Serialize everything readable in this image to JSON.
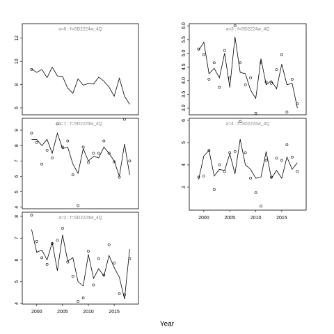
{
  "xlabel": "Year",
  "chart_data": [
    {
      "type": "line",
      "title": "a=0  :  f=SD2224w_4Q",
      "x": [
        1999,
        2000,
        2001,
        2002,
        2003,
        2004,
        2005,
        2006,
        2007,
        2008,
        2009,
        2010,
        2011,
        2012,
        2013,
        2014,
        2015,
        2016,
        2017,
        2018
      ],
      "xlim": [
        1997.2,
        2019.7
      ],
      "ylim": [
        5.4,
        13.25
      ],
      "yticks": [
        6,
        8,
        10,
        12
      ],
      "series": [
        {
          "style": "line",
          "color": "#000000",
          "values": [
            9.35,
            9.05,
            9.3,
            8.6,
            9.5,
            8.75,
            8.7,
            7.7,
            7.25,
            8.5,
            7.95,
            8.1,
            8.05,
            8.65,
            8.3,
            7.8,
            7.0,
            8.55,
            7.0,
            6.3
          ]
        },
        {
          "style": "points",
          "color": "#000000",
          "values": [
            9.3,
            null,
            null,
            null,
            null,
            null,
            null,
            null,
            null,
            null,
            null,
            null,
            null,
            null,
            null,
            null,
            null,
            null,
            null,
            null
          ]
        }
      ]
    },
    {
      "type": "line",
      "title": "a=1  :  f=SD2224w_4Q",
      "x": [
        1999,
        2000,
        2001,
        2002,
        2003,
        2004,
        2005,
        2006,
        2007,
        2008,
        2009,
        2010,
        2011,
        2012,
        2013,
        2014,
        2015,
        2016,
        2017,
        2018
      ],
      "xlim": [
        1997.2,
        2019.7
      ],
      "ylim": [
        3.9,
        9.77
      ],
      "yticks": [
        4,
        5,
        6,
        7,
        8,
        9
      ],
      "series": [
        {
          "style": "line",
          "color": "#000000",
          "values": [
            8.4,
            8.4,
            8.0,
            8.4,
            7.5,
            8.8,
            7.8,
            7.9,
            6.8,
            6.2,
            7.8,
            7.0,
            7.3,
            7.2,
            7.9,
            7.5,
            7.0,
            6.0,
            8.1,
            6.1
          ]
        },
        {
          "style": "points",
          "color": "#000000",
          "values": [
            8.8,
            8.2,
            6.8,
            7.7,
            7.2,
            9.4,
            7.9,
            8.3,
            6.1,
            4.1,
            7.9,
            6.9,
            7.5,
            7.5,
            8.3,
            7.5,
            6.95,
            5.95,
            9.7,
            7.0
          ]
        }
      ]
    },
    {
      "type": "line",
      "title": "a=2  :  f=SD2224w_4Q",
      "x": [
        1999,
        2000,
        2001,
        2002,
        2003,
        2004,
        2005,
        2006,
        2007,
        2008,
        2009,
        2010,
        2011,
        2012,
        2013,
        2014,
        2015,
        2016,
        2017,
        2018
      ],
      "xlim": [
        1997.2,
        2019.7
      ],
      "xticks": [
        2000,
        2005,
        2010,
        2015
      ],
      "ylim": [
        3.97,
        8.19
      ],
      "yticks": [
        4,
        5,
        6,
        7,
        8
      ],
      "series": [
        {
          "style": "line",
          "color": "#000000",
          "values": [
            7.4,
            6.35,
            6.45,
            6.0,
            6.8,
            5.5,
            7.15,
            5.95,
            6.1,
            5.0,
            4.8,
            6.25,
            5.15,
            5.6,
            5.25,
            6.2,
            5.65,
            5.2,
            4.2,
            6.5
          ]
        },
        {
          "style": "points",
          "color": "#000000",
          "values": [
            8.05,
            6.85,
            6.1,
            5.8,
            6.75,
            6.9,
            7.45,
            5.9,
            5.25,
            4.1,
            4.25,
            6.4,
            4.85,
            6.05,
            5.3,
            6.7,
            5.85,
            4.45,
            4.4,
            6.05
          ]
        }
      ]
    },
    {
      "type": "line",
      "title": "a=3  :  f=SD2224w_4Q",
      "x": [
        1999,
        2000,
        2001,
        2002,
        2003,
        2004,
        2005,
        2006,
        2007,
        2008,
        2009,
        2010,
        2011,
        2012,
        2013,
        2014,
        2015,
        2016,
        2017,
        2018
      ],
      "xlim": [
        1997.2,
        2019.7
      ],
      "ylim": [
        2.75,
        6.08
      ],
      "yticks": [
        {
          "value": 3,
          "label": "3.0"
        },
        {
          "value": 3.5,
          "label": "3.5"
        },
        {
          "value": 4,
          "label": "4.0"
        },
        {
          "value": 4.5,
          "label": "4.5"
        },
        {
          "value": 5,
          "label": "5.0"
        },
        {
          "value": 5.5,
          "label": "5.5"
        },
        {
          "value": 6,
          "label": "6.0"
        }
      ],
      "series": [
        {
          "style": "line",
          "color": "#000000",
          "values": [
            5.1,
            5.4,
            4.25,
            4.45,
            4.1,
            5.0,
            3.75,
            5.6,
            4.3,
            4.25,
            3.65,
            3.35,
            4.8,
            3.85,
            4.0,
            3.7,
            4.6,
            3.85,
            3.9,
            3.0
          ]
        },
        {
          "style": "points",
          "color": "#000000",
          "values": [
            5.15,
            4.95,
            4.05,
            4.65,
            3.75,
            5.1,
            4.1,
            6.0,
            4.65,
            3.85,
            4.1,
            2.8,
            4.65,
            3.95,
            3.9,
            4.4,
            4.95,
            2.85,
            4.05,
            3.15
          ]
        }
      ]
    },
    {
      "type": "line",
      "title": "a=4  :  f=SD2224w_4Q",
      "x": [
        1999,
        2000,
        2001,
        2002,
        2003,
        2004,
        2005,
        2006,
        2007,
        2008,
        2009,
        2010,
        2011,
        2012,
        2013,
        2014,
        2015,
        2016,
        2017,
        2018
      ],
      "xlim": [
        1997.2,
        2019.7
      ],
      "xticks": [
        2000,
        2005,
        2010,
        2015
      ],
      "ylim": [
        1.97,
        6.09
      ],
      "yticks": [
        3,
        4,
        5,
        6
      ],
      "series": [
        {
          "style": "line",
          "color": "#000000",
          "values": [
            3.35,
            4.4,
            4.65,
            3.5,
            3.8,
            3.75,
            4.5,
            3.6,
            5.15,
            4.0,
            3.8,
            3.4,
            3.45,
            4.6,
            3.4,
            3.75,
            3.4,
            4.35,
            3.8,
            4.1
          ]
        },
        {
          "style": "points",
          "color": "#000000",
          "values": [
            3.45,
            3.5,
            4.65,
            2.9,
            4.0,
            3.7,
            4.55,
            4.6,
            5.95,
            4.55,
            3.4,
            2.75,
            2.15,
            4.2,
            3.45,
            4.3,
            4.2,
            4.9,
            4.35,
            3.7
          ]
        }
      ]
    }
  ]
}
